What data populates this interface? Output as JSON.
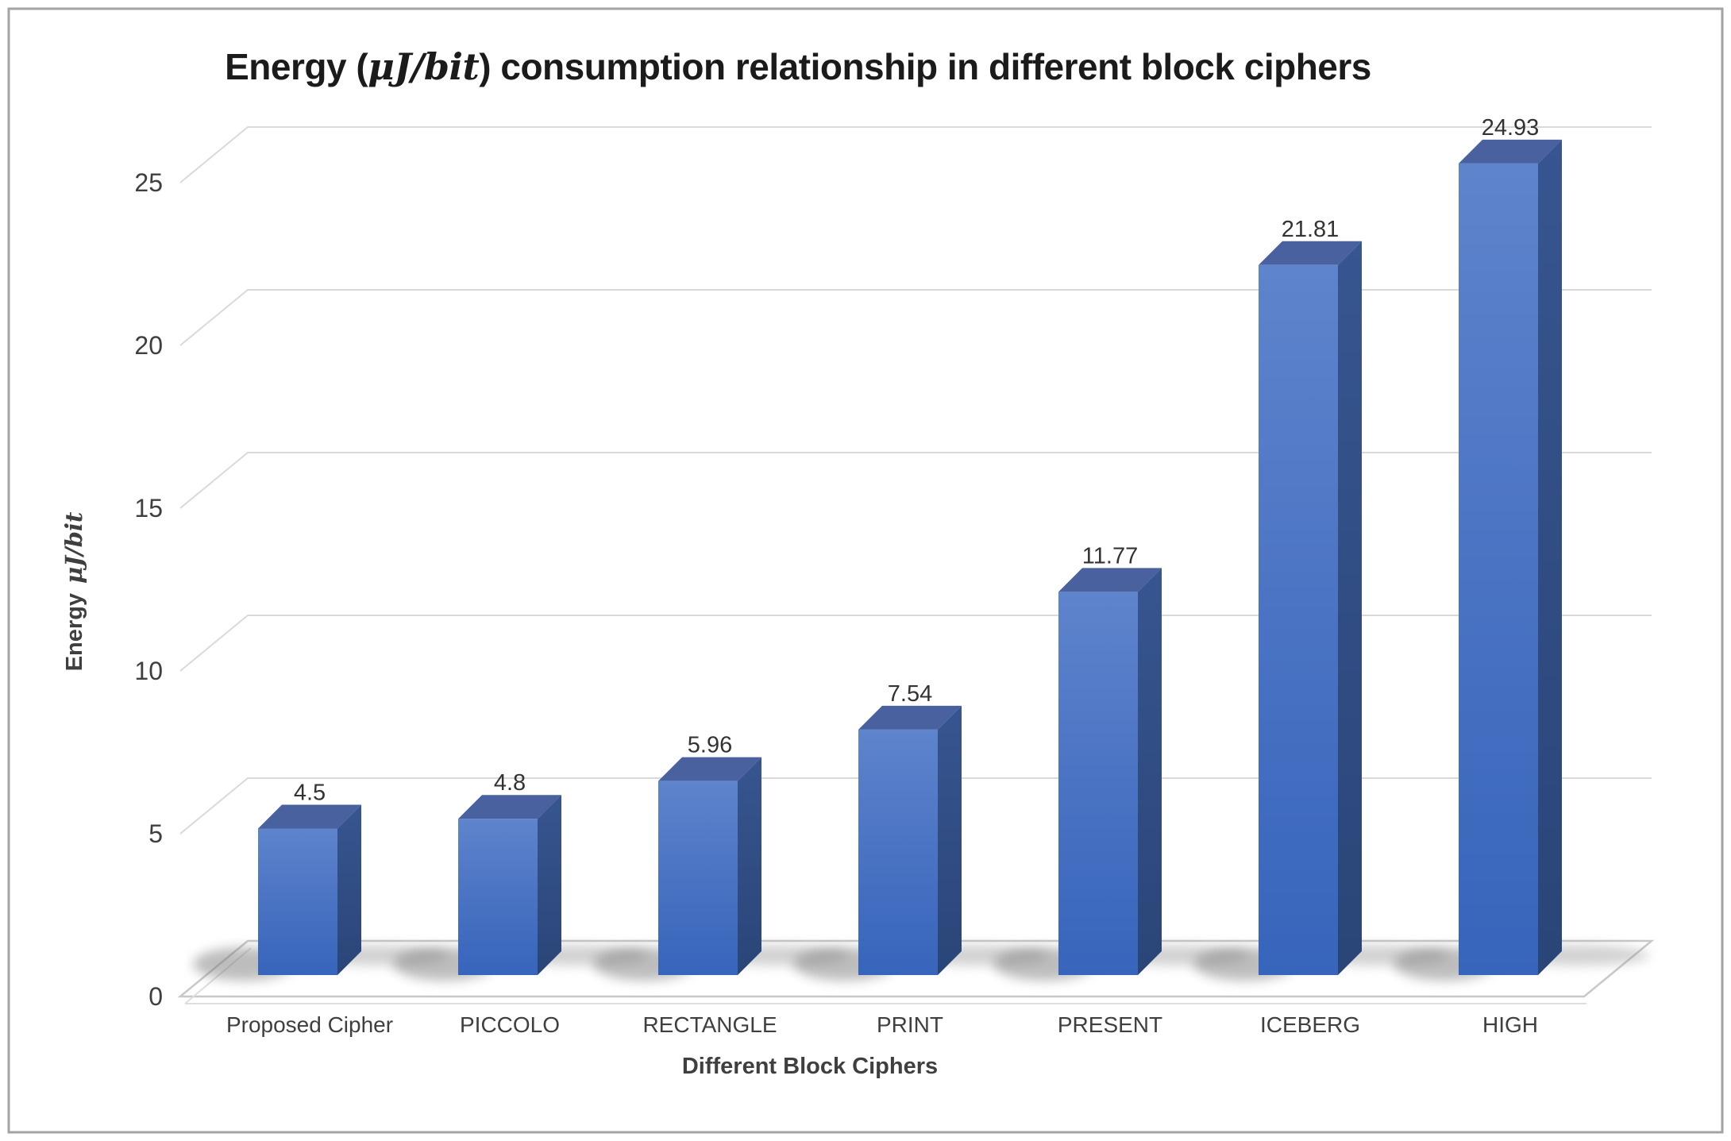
{
  "window": {
    "background": "#ffffff",
    "border_color": "#a3a3a3"
  },
  "title": {
    "part1": "Energy (",
    "math": "μJ/bit",
    "part2": ") consumption relationship in different block ciphers",
    "full": "Energy (μJ/bit) consumption relationship in different block ciphers"
  },
  "y_axis": {
    "label_text": "Energy",
    "label_math": "μJ/bit"
  },
  "x_axis": {
    "title": "Different Block Ciphers"
  },
  "chart_data": {
    "type": "bar",
    "style": "3d-column",
    "title": "Energy (μJ/bit) consumption relationship in different block ciphers",
    "categories": [
      "Proposed Cipher",
      "PICCOLO",
      "RECTANGLE",
      "PRINT",
      "PRESENT",
      "ICEBERG",
      "HIGH"
    ],
    "values": [
      4.5,
      4.8,
      5.96,
      7.54,
      11.77,
      21.81,
      24.93
    ],
    "data_labels": [
      "4.5",
      "4.8",
      "5.96",
      "7.54",
      "11.77",
      "21.81",
      "24.93"
    ],
    "xlabel": "Different Block Ciphers",
    "ylabel": "Energy μJ/bit",
    "y_ticks": [
      0,
      5,
      10,
      15,
      20,
      25
    ],
    "ylim": [
      0,
      25
    ],
    "grid": true,
    "legend": false,
    "colors": {
      "bar_front_top": "#5e84cc",
      "bar_front_bottom": "#3765bb",
      "bar_side_top": "#375590",
      "bar_side_bottom": "#2a4577",
      "bar_top_face": "#49619e",
      "gridline": "#d9d9d9",
      "floor_edge": "#c8c8c8",
      "shadow": "#777777"
    }
  }
}
